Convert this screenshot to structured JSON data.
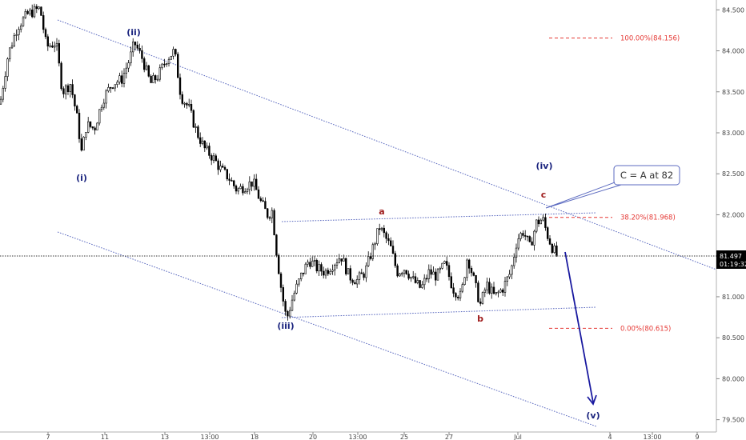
{
  "chart_data": {
    "type": "candlestick",
    "y_axis": {
      "ticks": [
        "84.500",
        "84.000",
        "83.500",
        "83.000",
        "82.500",
        "82.000",
        "81.500",
        "81.000",
        "80.500",
        "80.000",
        "79.500"
      ],
      "ylim": [
        79.35,
        84.62
      ],
      "side": "right"
    },
    "x_axis": {
      "ticks": [
        "7",
        "11",
        "13",
        "13:00",
        "18",
        "20",
        "13:00",
        "25",
        "27",
        "Jul",
        "4",
        "13:00",
        "9"
      ]
    },
    "current_price": {
      "value": "81.497",
      "countdown": "01:19:32"
    },
    "price_path": [
      [
        0,
        83.35
      ],
      [
        10,
        83.95
      ],
      [
        22,
        84.3
      ],
      [
        35,
        84.45
      ],
      [
        50,
        84.52
      ],
      [
        58,
        84.05
      ],
      [
        70,
        84.1
      ],
      [
        78,
        83.5
      ],
      [
        88,
        83.6
      ],
      [
        96,
        83.2
      ],
      [
        102,
        82.75
      ],
      [
        108,
        83.1
      ],
      [
        118,
        83.05
      ],
      [
        128,
        83.4
      ],
      [
        140,
        83.6
      ],
      [
        152,
        83.65
      ],
      [
        162,
        83.9
      ],
      [
        168,
        84.1
      ],
      [
        178,
        83.9
      ],
      [
        188,
        83.6
      ],
      [
        198,
        83.7
      ],
      [
        208,
        83.9
      ],
      [
        218,
        84.0
      ],
      [
        226,
        83.45
      ],
      [
        236,
        83.3
      ],
      [
        246,
        83.0
      ],
      [
        256,
        82.8
      ],
      [
        266,
        82.7
      ],
      [
        276,
        82.55
      ],
      [
        286,
        82.45
      ],
      [
        296,
        82.3
      ],
      [
        306,
        82.35
      ],
      [
        316,
        82.4
      ],
      [
        326,
        82.15
      ],
      [
        334,
        82.0
      ],
      [
        340,
        82.05
      ],
      [
        346,
        81.5
      ],
      [
        352,
        81.05
      ],
      [
        358,
        80.72
      ],
      [
        366,
        81.0
      ],
      [
        376,
        81.25
      ],
      [
        386,
        81.45
      ],
      [
        396,
        81.35
      ],
      [
        406,
        81.3
      ],
      [
        416,
        81.4
      ],
      [
        426,
        81.5
      ],
      [
        436,
        81.25
      ],
      [
        446,
        81.2
      ],
      [
        456,
        81.3
      ],
      [
        466,
        81.6
      ],
      [
        474,
        81.85
      ],
      [
        480,
        81.75
      ],
      [
        488,
        81.6
      ],
      [
        496,
        81.3
      ],
      [
        506,
        81.35
      ],
      [
        516,
        81.2
      ],
      [
        526,
        81.1
      ],
      [
        536,
        81.3
      ],
      [
        546,
        81.25
      ],
      [
        556,
        81.4
      ],
      [
        566,
        81.1
      ],
      [
        576,
        81.0
      ],
      [
        584,
        81.5
      ],
      [
        592,
        81.2
      ],
      [
        600,
        80.9
      ],
      [
        608,
        81.15
      ],
      [
        618,
        81.0
      ],
      [
        628,
        81.1
      ],
      [
        638,
        81.3
      ],
      [
        646,
        81.7
      ],
      [
        654,
        81.8
      ],
      [
        662,
        81.6
      ],
      [
        670,
        81.9
      ],
      [
        678,
        81.95
      ],
      [
        684,
        81.75
      ],
      [
        690,
        81.6
      ],
      [
        696,
        81.5
      ]
    ],
    "wave_labels": [
      "(i)",
      "(ii)",
      "(iii)",
      "(iv)",
      "(v)",
      "a",
      "b",
      "c"
    ],
    "fib_levels": [
      "100.00%(84.156)",
      "38.20%(81.968)",
      "0.00%(80.615)"
    ],
    "annotation": "C = A at 82",
    "colors": {
      "candle": "#000000",
      "channel": "#5c6bc0",
      "projection_arrow": "#1a1aa0",
      "fib": "#e53935",
      "wave_primary": "#1a237e",
      "wave_secondary": "#9e1b1b",
      "price_tag": "#000000"
    }
  }
}
